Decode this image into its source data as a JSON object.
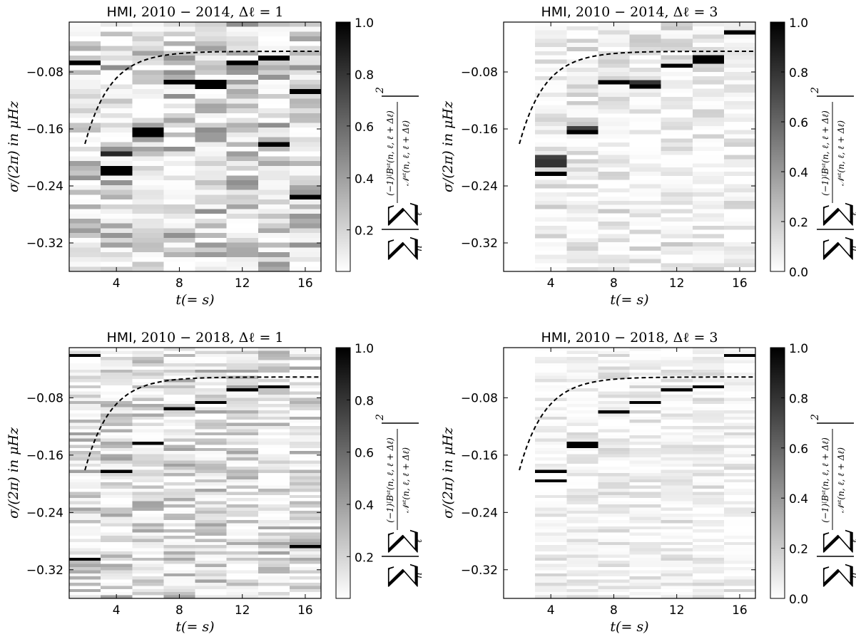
{
  "chart_data": [
    {
      "type": "heatmap",
      "title_prefix": "HMI, ",
      "title_math": "2010 − 2014, Δℓ = 1",
      "xlabel": "t(= s)",
      "ylabel": "σ/(2π) in μHz",
      "xticks": [
        "4",
        "8",
        "12",
        "16"
      ],
      "xtick_values": [
        4,
        8,
        12,
        16
      ],
      "yticks": [
        "−0.08",
        "−0.16",
        "−0.24",
        "−0.32"
      ],
      "ytick_values": [
        -0.08,
        -0.16,
        -0.24,
        -0.32
      ],
      "xlim": [
        1,
        17
      ],
      "ylim": [
        -0.36,
        -0.01
      ],
      "columns_s": [
        2,
        4,
        6,
        8,
        10,
        12,
        14,
        16
      ],
      "rows": 52,
      "seed": 11,
      "first_col_blank": false,
      "noise_level": 0.45,
      "peaks": [
        {
          "s": 2,
          "y": -0.068,
          "v": 1.0
        },
        {
          "s": 4,
          "y": -0.193,
          "v": 0.85
        },
        {
          "s": 4,
          "y": -0.218,
          "v": 1.0
        },
        {
          "s": 6,
          "y": -0.165,
          "v": 1.0
        },
        {
          "s": 8,
          "y": -0.093,
          "v": 1.0
        },
        {
          "s": 10,
          "y": -0.093,
          "v": 1.0
        },
        {
          "s": 10,
          "y": -0.098,
          "v": 1.0
        },
        {
          "s": 12,
          "y": -0.069,
          "v": 1.0
        },
        {
          "s": 14,
          "y": -0.061,
          "v": 1.0
        },
        {
          "s": 14,
          "y": -0.182,
          "v": 1.0
        },
        {
          "s": 16,
          "y": -0.108,
          "v": 1.0
        },
        {
          "s": 16,
          "y": -0.255,
          "v": 1.0
        }
      ],
      "curve": {
        "x_start": 2,
        "x_end": 17,
        "a": -0.13,
        "k": 0.62,
        "c": -0.051
      },
      "colorbar": {
        "ticks": [
          "0.2",
          "0.4",
          "0.6",
          "0.8",
          "1.0"
        ],
        "tick_values": [
          0.2,
          0.4,
          0.6,
          0.8,
          1.0
        ],
        "range": [
          0.04,
          1.0
        ]
      }
    },
    {
      "type": "heatmap",
      "title_prefix": "HMI, ",
      "title_math": "2010 − 2014, Δℓ = 3",
      "xlabel": "t(= s)",
      "ylabel": "σ/(2π) in μHz",
      "xticks": [
        "4",
        "8",
        "12",
        "16"
      ],
      "xtick_values": [
        4,
        8,
        12,
        16
      ],
      "yticks": [
        "−0.08",
        "−0.16",
        "−0.24",
        "−0.32"
      ],
      "ytick_values": [
        -0.08,
        -0.16,
        -0.24,
        -0.32
      ],
      "xlim": [
        1,
        17
      ],
      "ylim": [
        -0.36,
        -0.01
      ],
      "columns_s": [
        2,
        4,
        6,
        8,
        10,
        12,
        14,
        16
      ],
      "rows": 60,
      "seed": 23,
      "first_col_blank": true,
      "noise_level": 0.22,
      "peaks": [
        {
          "s": 4,
          "y": -0.2,
          "v": 0.75
        },
        {
          "s": 4,
          "y": -0.208,
          "v": 0.8
        },
        {
          "s": 4,
          "y": -0.225,
          "v": 1.0
        },
        {
          "s": 6,
          "y": -0.158,
          "v": 0.75
        },
        {
          "s": 6,
          "y": -0.166,
          "v": 1.0
        },
        {
          "s": 8,
          "y": -0.094,
          "v": 1.0
        },
        {
          "s": 10,
          "y": -0.094,
          "v": 0.8
        },
        {
          "s": 10,
          "y": -0.1,
          "v": 1.0
        },
        {
          "s": 12,
          "y": -0.071,
          "v": 1.0
        },
        {
          "s": 14,
          "y": -0.063,
          "v": 1.0
        },
        {
          "s": 16,
          "y": -0.023,
          "v": 1.0
        }
      ],
      "curve": {
        "x_start": 2,
        "x_end": 17,
        "a": -0.13,
        "k": 0.62,
        "c": -0.051
      },
      "colorbar": {
        "ticks": [
          "0.0",
          "0.2",
          "0.4",
          "0.6",
          "0.8",
          "1.0"
        ],
        "tick_values": [
          0.0,
          0.2,
          0.4,
          0.6,
          0.8,
          1.0
        ],
        "range": [
          0.0,
          1.0
        ]
      }
    },
    {
      "type": "heatmap",
      "title_prefix": "HMI, ",
      "title_math": "2010 − 2018, Δℓ = 1",
      "xlabel": "t(= s)",
      "ylabel": "σ/(2π) in μHz",
      "xticks": [
        "4",
        "8",
        "12",
        "16"
      ],
      "xtick_values": [
        4,
        8,
        12,
        16
      ],
      "yticks": [
        "−0.08",
        "−0.16",
        "−0.24",
        "−0.32"
      ],
      "ytick_values": [
        -0.08,
        -0.16,
        -0.24,
        -0.32
      ],
      "xlim": [
        1,
        17
      ],
      "ylim": [
        -0.36,
        -0.01
      ],
      "columns_s": [
        2,
        4,
        6,
        8,
        10,
        12,
        14,
        16
      ],
      "rows": 80,
      "seed": 37,
      "first_col_blank": false,
      "noise_level": 0.38,
      "peaks": [
        {
          "s": 2,
          "y": -0.022,
          "v": 1.0
        },
        {
          "s": 2,
          "y": -0.305,
          "v": 1.0
        },
        {
          "s": 4,
          "y": -0.184,
          "v": 1.0
        },
        {
          "s": 6,
          "y": -0.142,
          "v": 1.0
        },
        {
          "s": 8,
          "y": -0.097,
          "v": 1.0
        },
        {
          "s": 10,
          "y": -0.085,
          "v": 1.0
        },
        {
          "s": 12,
          "y": -0.07,
          "v": 1.0
        },
        {
          "s": 14,
          "y": -0.063,
          "v": 1.0
        },
        {
          "s": 16,
          "y": -0.287,
          "v": 1.0
        }
      ],
      "curve": {
        "x_start": 2,
        "x_end": 17,
        "a": -0.13,
        "k": 0.62,
        "c": -0.051
      },
      "colorbar": {
        "ticks": [
          "0.2",
          "0.4",
          "0.6",
          "0.8",
          "1.0"
        ],
        "tick_values": [
          0.2,
          0.4,
          0.6,
          0.8,
          1.0
        ],
        "range": [
          0.04,
          1.0
        ]
      }
    },
    {
      "type": "heatmap",
      "title_prefix": "HMI, ",
      "title_math": "2010 − 2018, Δℓ = 3",
      "xlabel": "t(= s)",
      "ylabel": "σ/(2π) in μHz",
      "xticks": [
        "4",
        "8",
        "12",
        "16"
      ],
      "xtick_values": [
        4,
        8,
        12,
        16
      ],
      "yticks": [
        "−0.08",
        "−0.16",
        "−0.24",
        "−0.32"
      ],
      "ytick_values": [
        -0.08,
        -0.16,
        -0.24,
        -0.32
      ],
      "xlim": [
        1,
        17
      ],
      "ylim": [
        -0.36,
        -0.01
      ],
      "columns_s": [
        2,
        4,
        6,
        8,
        10,
        12,
        14,
        16
      ],
      "rows": 80,
      "seed": 53,
      "first_col_blank": true,
      "noise_level": 0.18,
      "peaks": [
        {
          "s": 4,
          "y": -0.184,
          "v": 1.0
        },
        {
          "s": 4,
          "y": -0.197,
          "v": 1.0
        },
        {
          "s": 6,
          "y": -0.146,
          "v": 1.0
        },
        {
          "s": 8,
          "y": -0.1,
          "v": 1.0
        },
        {
          "s": 10,
          "y": -0.087,
          "v": 1.0
        },
        {
          "s": 12,
          "y": -0.07,
          "v": 1.0
        },
        {
          "s": 14,
          "y": -0.063,
          "v": 1.0
        },
        {
          "s": 16,
          "y": -0.022,
          "v": 1.0
        }
      ],
      "curve": {
        "x_start": 2,
        "x_end": 17,
        "a": -0.13,
        "k": 0.62,
        "c": -0.051
      },
      "colorbar": {
        "ticks": [
          "0.0",
          "0.2",
          "0.4",
          "0.6",
          "0.8",
          "1.0"
        ],
        "tick_values": [
          0.0,
          0.2,
          0.4,
          0.6,
          0.8,
          1.0
        ],
        "range": [
          0.0,
          1.0
        ]
      }
    }
  ],
  "colorbar_label": {
    "sum_n": "n",
    "sum_l": "ℓ",
    "numerator": "(−1)ᶩBˢᵗ(n, ℓ, ℓ + Δℓ)",
    "denominator": "𝒩ˢᵗ(n, ℓ, ℓ + Δℓ)",
    "exponent": "2"
  }
}
